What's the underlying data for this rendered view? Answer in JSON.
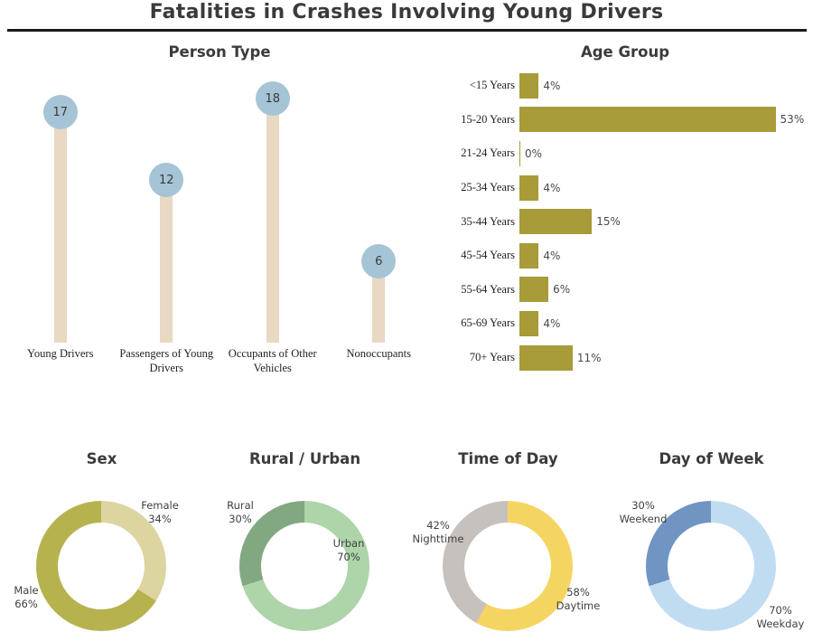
{
  "header": {
    "title": "Fatalities in Crashes Involving Young Drivers"
  },
  "chart_data": [
    {
      "id": "person_type",
      "type": "bar",
      "variant": "lollipop",
      "title": "Person Type",
      "categories": [
        "Young Drivers",
        "Passengers of Young Drivers",
        "Occupants of Other Vehicles",
        "Nonoccupants"
      ],
      "values": [
        17,
        12,
        18,
        6
      ],
      "ylim": [
        0,
        20
      ],
      "colors": {
        "dot": "#a5c4d6",
        "stem": "#e9d8c2"
      }
    },
    {
      "id": "age_group",
      "type": "bar",
      "orientation": "horizontal",
      "title": "Age Group",
      "categories": [
        "<15 Years",
        "15-20 Years",
        "21-24 Years",
        "25-34 Years",
        "35-44 Years",
        "45-54 Years",
        "55-64 Years",
        "65-69 Years",
        "70+ Years"
      ],
      "values": [
        4,
        53,
        0,
        4,
        15,
        4,
        6,
        4,
        11
      ],
      "value_labels": [
        "4%",
        "53%",
        "0%",
        "4%",
        "15%",
        "4%",
        "6%",
        "4%",
        "11%"
      ],
      "xlim": [
        0,
        60
      ],
      "bar_color": "#a89b3a"
    },
    {
      "id": "sex",
      "type": "pie",
      "variant": "donut",
      "title": "Sex",
      "segments": [
        {
          "label": "Female",
          "value_pct": 34,
          "color": "#dcd5a0",
          "label_lines": [
            "Female",
            "34%"
          ]
        },
        {
          "label": "Male",
          "value_pct": 66,
          "color": "#b6b24e",
          "label_lines": [
            "Male",
            "66%"
          ]
        }
      ]
    },
    {
      "id": "rural_urban",
      "type": "pie",
      "variant": "donut",
      "title": "Rural / Urban",
      "segments": [
        {
          "label": "Urban",
          "value_pct": 70,
          "color": "#aed4aa",
          "label_lines": [
            "Urban",
            "70%"
          ]
        },
        {
          "label": "Rural",
          "value_pct": 30,
          "color": "#82a882",
          "label_lines": [
            "Rural",
            "30%"
          ]
        }
      ]
    },
    {
      "id": "time_of_day",
      "type": "pie",
      "variant": "donut",
      "title": "Time of Day",
      "segments": [
        {
          "label": "Daytime",
          "value_pct": 58,
          "color": "#f5d562",
          "label_lines": [
            "58%",
            "Daytime"
          ]
        },
        {
          "label": "Nighttime",
          "value_pct": 42,
          "color": "#c7c1bd",
          "label_lines": [
            "42%",
            "Nighttime"
          ]
        }
      ]
    },
    {
      "id": "day_of_week",
      "type": "pie",
      "variant": "donut",
      "title": "Day of Week",
      "segments": [
        {
          "label": "Weekday",
          "value_pct": 70,
          "color": "#c0dcf1",
          "label_lines": [
            "70%",
            "Weekday"
          ]
        },
        {
          "label": "Weekend",
          "value_pct": 30,
          "color": "#7095c3",
          "label_lines": [
            "30%",
            "Weekend"
          ]
        }
      ]
    }
  ]
}
